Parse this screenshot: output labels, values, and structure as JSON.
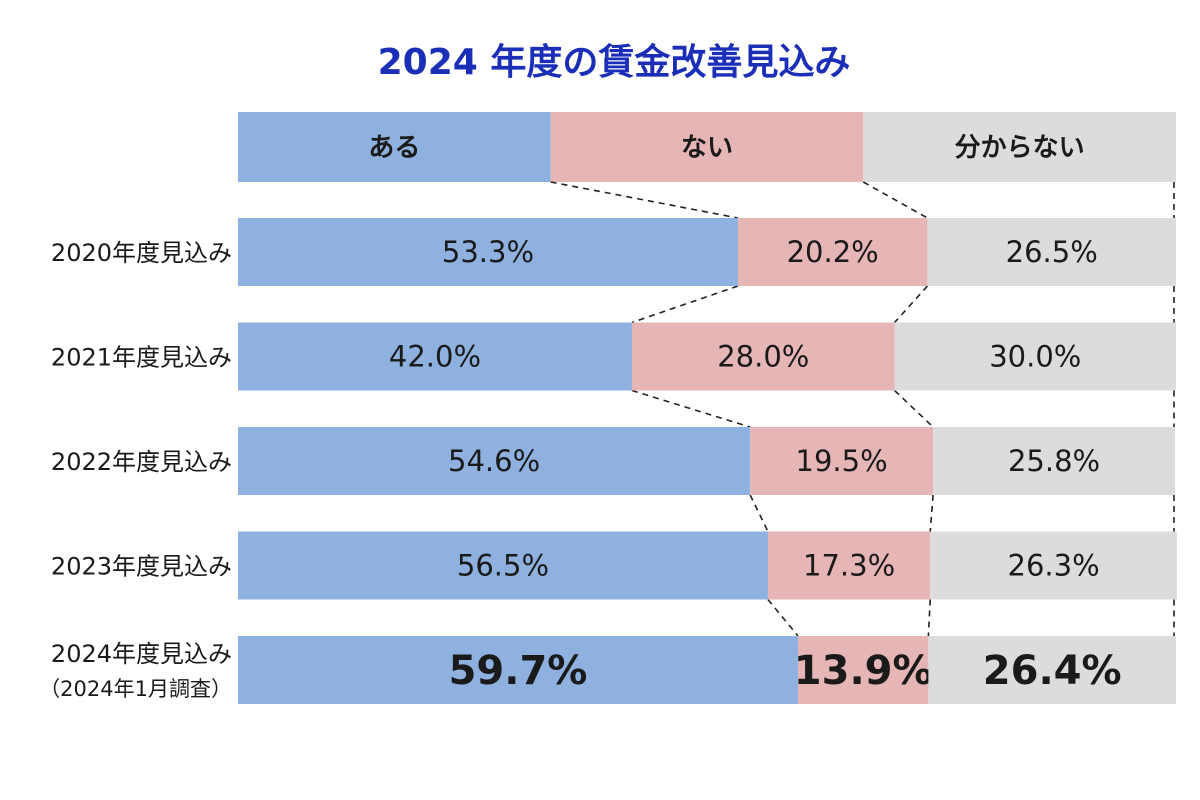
{
  "chart_data": {
    "type": "bar",
    "stacked": true,
    "orientation": "horizontal",
    "normalized_percent": true,
    "title": "2024 年度の賃金改善見込み",
    "categories": [
      [
        "2020年度見込み"
      ],
      [
        "2021年度見込み"
      ],
      [
        "2022年度見込み"
      ],
      [
        "2023年度見込み"
      ],
      [
        "2024年度見込み",
        "（2024年1月調査）"
      ]
    ],
    "series": [
      {
        "name": "ある",
        "values": [
          53.3,
          42.0,
          54.6,
          56.5,
          59.7
        ],
        "labels": [
          "53.3%",
          "42.0%",
          "54.6%",
          "56.5%",
          "59.7%"
        ]
      },
      {
        "name": "ない",
        "values": [
          20.2,
          28.0,
          19.5,
          17.3,
          13.9
        ],
        "labels": [
          "20.2%",
          "28.0%",
          "19.5%",
          "17.3%",
          "13.9%"
        ]
      },
      {
        "name": "分からない",
        "values": [
          26.5,
          30.0,
          25.8,
          26.3,
          26.4
        ],
        "labels": [
          "26.5%",
          "30.0%",
          "25.8%",
          "26.3%",
          "26.4%"
        ]
      }
    ],
    "highlight_category_index": 4,
    "legend": {
      "placement": "top",
      "style": "header-band"
    },
    "series_lines": true,
    "xlim": [
      0,
      100
    ],
    "grid": false
  },
  "colors": {
    "title": "#1a2eb8",
    "text": "#1a1a1a",
    "series": [
      "#8eb1df",
      "#e6b5b5",
      "#dcdcdc"
    ],
    "connector": "#222222",
    "background": "#ffffff"
  }
}
